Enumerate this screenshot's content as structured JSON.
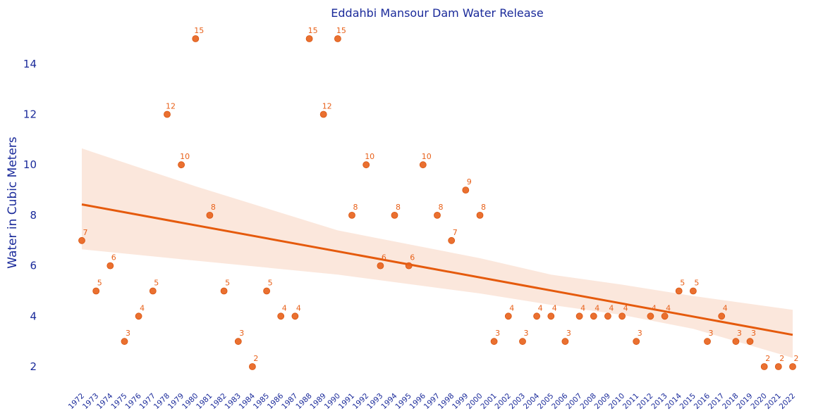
{
  "chart_data": {
    "type": "scatter",
    "title": "Eddahbi Mansour Dam Water Release",
    "xlabel": "",
    "ylabel": "Water in Cubic Meters",
    "x": [
      "1972",
      "1973",
      "1974",
      "1975",
      "1976",
      "1977",
      "1978",
      "1979",
      "1980",
      "1981",
      "1982",
      "1983",
      "1984",
      "1985",
      "1986",
      "1987",
      "1988",
      "1989",
      "1990",
      "1991",
      "1992",
      "1993",
      "1994",
      "1995",
      "1996",
      "1997",
      "1998",
      "1999",
      "2000",
      "2001",
      "2002",
      "2003",
      "2004",
      "2005",
      "2006",
      "2007",
      "2008",
      "2009",
      "2010",
      "2011",
      "2012",
      "2013",
      "2014",
      "2015",
      "2016",
      "2017",
      "2018",
      "2019",
      "2020",
      "2021",
      "2022"
    ],
    "y": [
      7,
      5,
      6,
      3,
      4,
      5,
      12,
      10,
      15,
      8,
      5,
      3,
      2,
      5,
      4,
      4,
      15,
      12,
      15,
      8,
      10,
      6,
      8,
      6,
      10,
      8,
      7,
      9,
      8,
      3,
      4,
      3,
      4,
      4,
      3,
      4,
      4,
      4,
      4,
      3,
      4,
      4,
      5,
      5,
      3,
      4,
      3,
      3,
      2,
      2,
      2
    ],
    "data_labels": [
      "7",
      "5",
      "6",
      "3",
      "4",
      "5",
      "12",
      "10",
      "15",
      "8",
      "5",
      "3",
      "2",
      "5",
      "4",
      "4",
      "15",
      "12",
      "15",
      "8",
      "10",
      "6",
      "8",
      "6",
      "10",
      "8",
      "7",
      "9",
      "8",
      "3",
      "4",
      "3",
      "4",
      "4",
      "3",
      "4",
      "4",
      "4",
      "4",
      "3",
      "4",
      "4",
      "5",
      "5",
      "3",
      "4",
      "3",
      "3",
      "2",
      "2",
      "2"
    ],
    "yticks": [
      "2",
      "4",
      "6",
      "8",
      "10",
      "12",
      "14"
    ],
    "ylim": [
      1.2,
      15.6
    ],
    "trend": {
      "type": "linear_regression",
      "start": 8.43,
      "end": 3.26
    },
    "ci_band": {
      "upper": [
        [
          1972,
          10.65
        ],
        [
          1980,
          9.15
        ],
        [
          1990,
          7.4
        ],
        [
          2000,
          6.3
        ],
        [
          2005,
          5.65
        ],
        [
          2010,
          5.25
        ],
        [
          2015,
          4.8
        ],
        [
          2022,
          4.25
        ]
      ],
      "lower": [
        [
          1972,
          6.65
        ],
        [
          1980,
          6.2
        ],
        [
          1990,
          5.65
        ],
        [
          2000,
          4.9
        ],
        [
          2005,
          4.45
        ],
        [
          2010,
          4.05
        ],
        [
          2015,
          3.5
        ],
        [
          2022,
          2.35
        ]
      ]
    },
    "grid": false,
    "legend": "none",
    "colors": {
      "points": "#e8611a",
      "labels": "#e8611a",
      "line": "#e55a0c",
      "band": "#fbe4d8",
      "text": "#1a2a9a"
    }
  }
}
